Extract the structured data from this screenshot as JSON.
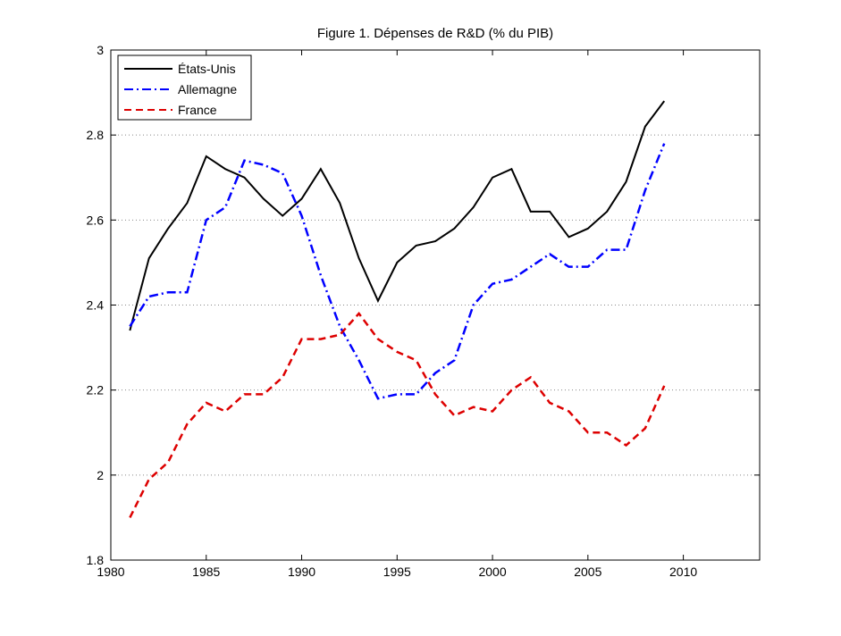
{
  "chart_data": {
    "type": "line",
    "title": "Figure 1. Dépenses de R&D (% du PIB)",
    "xlabel": "",
    "ylabel": "",
    "xlim": [
      1980,
      2014
    ],
    "ylim": [
      1.8,
      3
    ],
    "xticks": [
      1980,
      1985,
      1990,
      1995,
      2000,
      2005,
      2010
    ],
    "yticks": [
      1.8,
      2,
      2.2,
      2.4,
      2.6,
      2.8,
      3
    ],
    "xtick_labels": [
      "1980",
      "1985",
      "1990",
      "1995",
      "2000",
      "2005",
      "2010"
    ],
    "ytick_labels": [
      "1.8",
      "2",
      "2.2",
      "2.4",
      "2.6",
      "2.8",
      "3"
    ],
    "grid": "horizontal dotted",
    "legend_position": "top-left",
    "x": [
      1981,
      1982,
      1983,
      1984,
      1985,
      1986,
      1987,
      1988,
      1989,
      1990,
      1991,
      1992,
      1993,
      1994,
      1995,
      1996,
      1997,
      1998,
      1999,
      2000,
      2001,
      2002,
      2003,
      2004,
      2005,
      2006,
      2007,
      2008,
      2009
    ],
    "series": [
      {
        "name": "États-Unis",
        "color": "#000000",
        "dash": "solid",
        "values": [
          2.34,
          2.51,
          2.58,
          2.64,
          2.75,
          2.72,
          2.7,
          2.65,
          2.61,
          2.65,
          2.72,
          2.64,
          2.51,
          2.41,
          2.5,
          2.54,
          2.55,
          2.58,
          2.63,
          2.7,
          2.72,
          2.62,
          2.62,
          2.56,
          2.58,
          2.62,
          2.69,
          2.82,
          2.88
        ]
      },
      {
        "name": "Allemagne",
        "color": "#0000ff",
        "dash": "dashdot",
        "values": [
          2.35,
          2.42,
          2.43,
          2.43,
          2.6,
          2.63,
          2.74,
          2.73,
          2.71,
          2.61,
          2.47,
          2.35,
          2.27,
          2.18,
          2.19,
          2.19,
          2.24,
          2.27,
          2.4,
          2.45,
          2.46,
          2.49,
          2.52,
          2.49,
          2.49,
          2.53,
          2.53,
          2.67,
          2.78
        ]
      },
      {
        "name": "France",
        "color": "#dd0000",
        "dash": "dashed",
        "values": [
          1.9,
          1.99,
          2.03,
          2.12,
          2.17,
          2.15,
          2.19,
          2.19,
          2.23,
          2.32,
          2.32,
          2.33,
          2.38,
          2.32,
          2.29,
          2.27,
          2.19,
          2.14,
          2.16,
          2.15,
          2.2,
          2.23,
          2.17,
          2.15,
          2.1,
          2.1,
          2.07,
          2.11,
          2.21
        ]
      }
    ]
  }
}
